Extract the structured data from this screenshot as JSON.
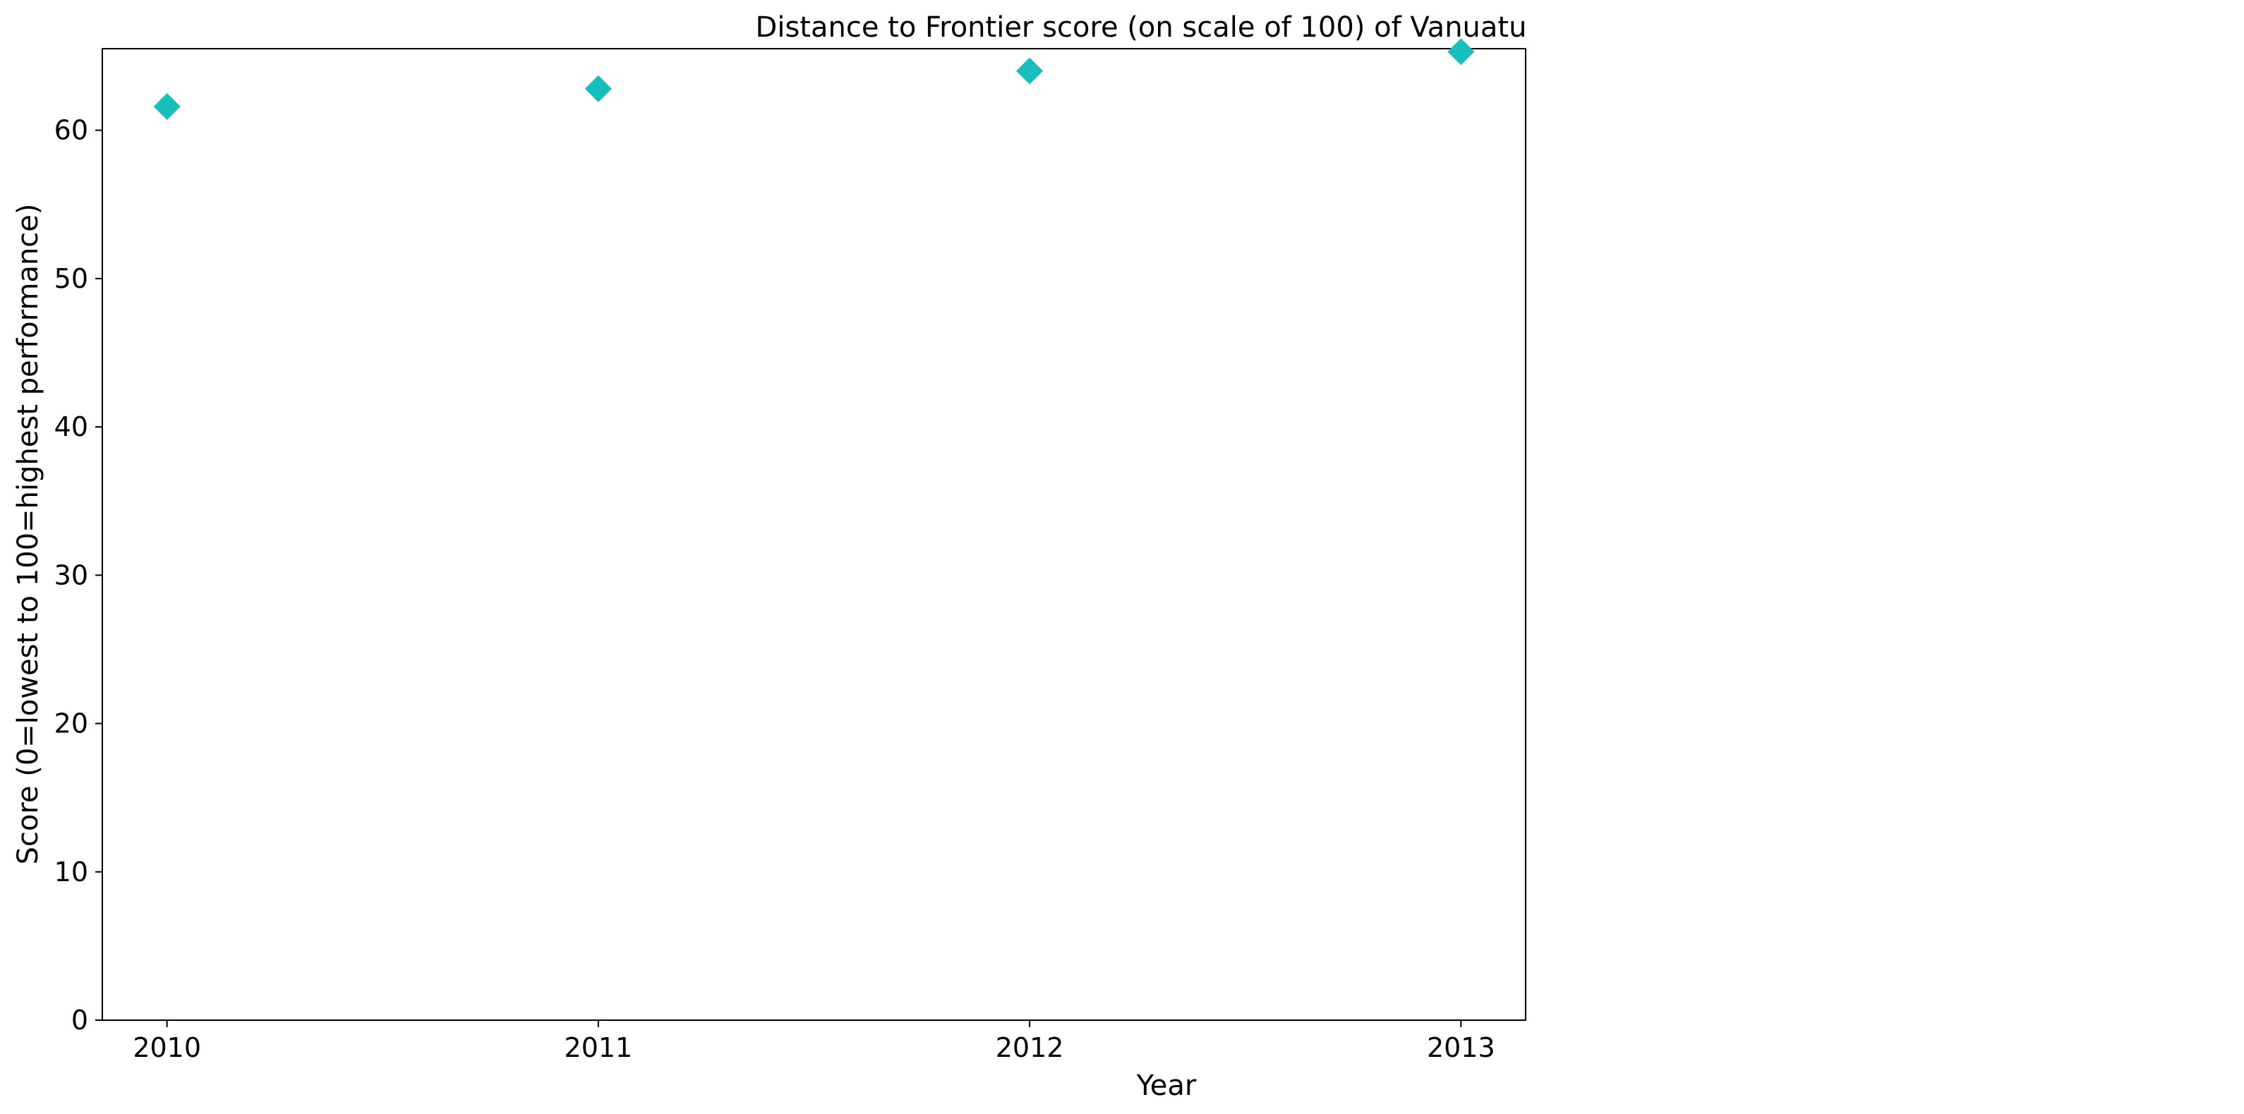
{
  "chart_data": {
    "type": "scatter",
    "title": "Distance to Frontier score (on scale of 100) of Vanuatu",
    "xlabel": "Year",
    "ylabel": "Score (0=lowest to 100=highest performance)",
    "x": [
      "2010",
      "2011",
      "2012",
      "2013"
    ],
    "series": [
      {
        "values": [
          61.6,
          62.8,
          64.0,
          65.3
        ]
      }
    ],
    "xlim": [
      2009.85,
      2013.15
    ],
    "ylim": [
      0,
      65.5
    ],
    "yticks": [
      0,
      10,
      20,
      30,
      40,
      50,
      60
    ],
    "xticks": [
      "2010",
      "2011",
      "2012",
      "2013"
    ],
    "marker": "diamond",
    "color": "#17BEBB",
    "grid": false,
    "legend": "none"
  }
}
